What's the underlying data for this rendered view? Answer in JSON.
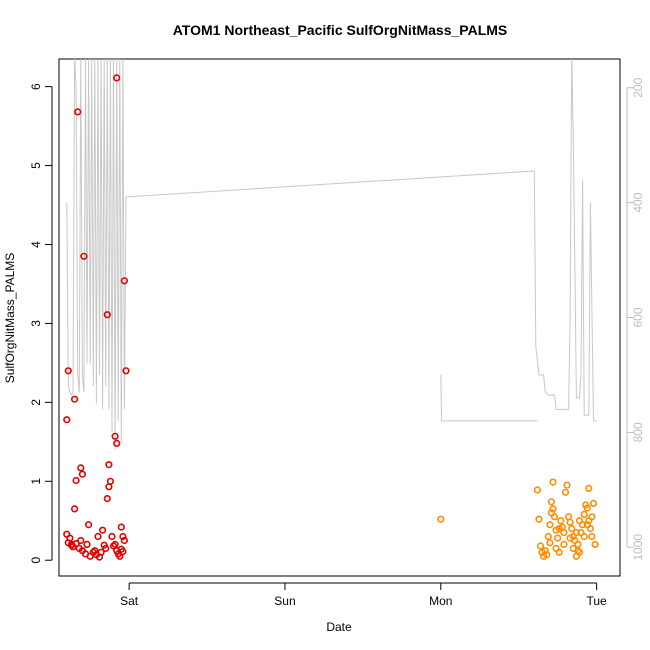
{
  "chart_data": {
    "type": "scatter",
    "title": "ATOM1 Northeast_Pacific SulfOrgNitMass_PALMS",
    "xlabel": "Date",
    "ylabel": "SulfOrgNitMass_PALMS",
    "x_ticks": [
      "Sat",
      "Sun",
      "Mon",
      "Tue"
    ],
    "x_tick_positions_days": [
      1,
      2,
      3,
      4
    ],
    "xlim": [
      0.55,
      4.15
    ],
    "ylim": [
      -0.2,
      6.35
    ],
    "y_ticks": [
      0,
      1,
      2,
      3,
      4,
      5,
      6
    ],
    "right_axis": {
      "ticks": [
        200,
        400,
        600,
        800,
        1000
      ],
      "lim": [
        1050,
        150
      ],
      "color": "#bdbdbd"
    },
    "grid": false,
    "colors": {
      "series1": "#e00000",
      "series2": "#ff8c00",
      "right_series": "#c8c8c8"
    },
    "series": [
      {
        "values": [
          [
            0.61,
            2.4
          ],
          [
            0.6,
            1.78
          ],
          [
            0.65,
            2.04
          ],
          [
            0.67,
            5.68
          ],
          [
            0.71,
            3.85
          ],
          [
            0.69,
            1.17
          ],
          [
            0.7,
            1.09
          ],
          [
            0.66,
            1.01
          ],
          [
            0.65,
            0.65
          ],
          [
            0.6,
            0.33
          ],
          [
            0.62,
            0.28
          ],
          [
            0.61,
            0.22
          ],
          [
            0.63,
            0.19
          ],
          [
            0.64,
            0.17
          ],
          [
            0.66,
            0.21
          ],
          [
            0.68,
            0.15
          ],
          [
            0.7,
            0.12
          ],
          [
            0.72,
            0.08
          ],
          [
            0.74,
            0.45
          ],
          [
            0.75,
            0.05
          ],
          [
            0.77,
            0.1
          ],
          [
            0.79,
            0.07
          ],
          [
            0.8,
            0.3
          ],
          [
            0.81,
            0.04
          ],
          [
            0.83,
            0.38
          ],
          [
            0.84,
            0.19
          ],
          [
            0.85,
            0.15
          ],
          [
            0.86,
            3.11
          ],
          [
            0.87,
            1.21
          ],
          [
            0.88,
            1.0
          ],
          [
            0.87,
            0.93
          ],
          [
            0.86,
            0.78
          ],
          [
            0.89,
            0.3
          ],
          [
            0.9,
            0.18
          ],
          [
            0.91,
            0.2
          ],
          [
            0.92,
            0.12
          ],
          [
            0.92,
            6.11
          ],
          [
            0.91,
            1.57
          ],
          [
            0.92,
            1.48
          ],
          [
            0.95,
            0.42
          ],
          [
            0.96,
            0.3
          ],
          [
            0.97,
            0.25
          ],
          [
            0.95,
            0.14
          ],
          [
            0.96,
            0.11
          ],
          [
            0.97,
            3.54
          ],
          [
            0.98,
            2.4
          ],
          [
            0.93,
            0.08
          ],
          [
            0.94,
            0.05
          ],
          [
            0.82,
            0.1
          ],
          [
            0.78,
            0.12
          ],
          [
            0.73,
            0.2
          ],
          [
            0.69,
            0.25
          ],
          [
            0.63,
            0.2
          ]
        ]
      },
      {
        "values": [
          [
            3.0,
            0.52
          ],
          [
            3.62,
            0.89
          ],
          [
            3.63,
            0.52
          ],
          [
            3.64,
            0.18
          ],
          [
            3.65,
            0.1
          ],
          [
            3.66,
            0.05
          ],
          [
            3.68,
            0.07
          ],
          [
            3.69,
            0.3
          ],
          [
            3.7,
            0.45
          ],
          [
            3.71,
            0.6
          ],
          [
            3.71,
            0.74
          ],
          [
            3.72,
            0.99
          ],
          [
            3.72,
            0.65
          ],
          [
            3.73,
            0.55
          ],
          [
            3.74,
            0.38
          ],
          [
            3.75,
            0.28
          ],
          [
            3.76,
            0.4
          ],
          [
            3.77,
            0.5
          ],
          [
            3.78,
            0.42
          ],
          [
            3.79,
            0.35
          ],
          [
            3.8,
            0.86
          ],
          [
            3.81,
            0.95
          ],
          [
            3.82,
            0.55
          ],
          [
            3.83,
            0.48
          ],
          [
            3.84,
            0.4
          ],
          [
            3.85,
            0.3
          ],
          [
            3.86,
            0.25
          ],
          [
            3.87,
            0.05
          ],
          [
            3.88,
            0.12
          ],
          [
            3.88,
            0.2
          ],
          [
            3.89,
            0.1
          ],
          [
            3.9,
            0.35
          ],
          [
            3.91,
            0.45
          ],
          [
            3.92,
            0.58
          ],
          [
            3.93,
            0.7
          ],
          [
            3.94,
            0.66
          ],
          [
            3.95,
            0.91
          ],
          [
            3.95,
            0.5
          ],
          [
            3.96,
            0.4
          ],
          [
            3.97,
            0.3
          ],
          [
            3.98,
            0.72
          ],
          [
            3.99,
            0.2
          ],
          [
            3.67,
            0.12
          ],
          [
            3.7,
            0.22
          ],
          [
            3.74,
            0.15
          ],
          [
            3.76,
            0.1
          ],
          [
            3.79,
            0.2
          ],
          [
            3.83,
            0.28
          ],
          [
            3.85,
            0.15
          ],
          [
            3.87,
            0.35
          ],
          [
            3.89,
            0.5
          ],
          [
            3.92,
            0.3
          ],
          [
            3.94,
            0.45
          ],
          [
            3.97,
            0.55
          ]
        ]
      }
    ],
    "right_series": {
      "values": [
        [
          0.6,
          400
        ],
        [
          0.61,
          720
        ],
        [
          0.62,
          730
        ],
        [
          0.63,
          735
        ],
        [
          0.64,
          730
        ],
        [
          0.65,
          1000000000.0
        ],
        [
          0.66,
          200
        ],
        [
          0.67,
          700
        ],
        [
          0.68,
          730
        ],
        [
          0.69,
          140
        ],
        [
          0.7,
          700
        ],
        [
          0.71,
          730
        ],
        [
          0.72,
          140
        ],
        [
          0.73,
          680
        ],
        [
          0.74,
          140
        ],
        [
          0.75,
          680
        ],
        [
          0.76,
          140
        ],
        [
          0.77,
          720
        ],
        [
          0.78,
          140
        ],
        [
          0.79,
          750
        ],
        [
          0.8,
          140
        ],
        [
          0.81,
          700
        ],
        [
          0.82,
          140
        ],
        [
          0.83,
          760
        ],
        [
          0.84,
          140
        ],
        [
          0.85,
          720
        ],
        [
          0.86,
          140
        ],
        [
          0.87,
          760
        ],
        [
          0.88,
          140
        ],
        [
          0.89,
          800
        ],
        [
          0.9,
          140
        ],
        [
          0.91,
          830
        ],
        [
          0.92,
          140
        ],
        [
          0.93,
          780
        ],
        [
          0.94,
          140
        ],
        [
          0.95,
          820
        ],
        [
          0.96,
          140
        ],
        [
          0.97,
          760
        ],
        [
          0.98,
          390
        ],
        [
          3.6,
          345
        ],
        [
          3.61,
          650
        ],
        [
          3.63,
          700
        ],
        [
          3.66,
          700
        ],
        [
          3.67,
          730
        ],
        [
          3.69,
          735
        ],
        [
          3.73,
          735
        ],
        [
          3.74,
          760
        ],
        [
          3.8,
          760
        ],
        [
          3.82,
          760
        ],
        [
          3.83,
          600
        ],
        [
          3.84,
          140
        ],
        [
          3.85,
          280
        ],
        [
          3.86,
          500
        ],
        [
          3.87,
          740
        ],
        [
          3.89,
          740
        ],
        [
          3.9,
          700
        ],
        [
          3.91,
          360
        ],
        [
          3.92,
          770
        ],
        [
          3.93,
          770
        ],
        [
          3.95,
          770
        ],
        [
          3.96,
          400
        ],
        [
          3.98,
          780
        ],
        [
          4.0,
          780
        ],
        [
          3.0,
          700
        ],
        [
          3.005,
          780
        ]
      ]
    }
  }
}
